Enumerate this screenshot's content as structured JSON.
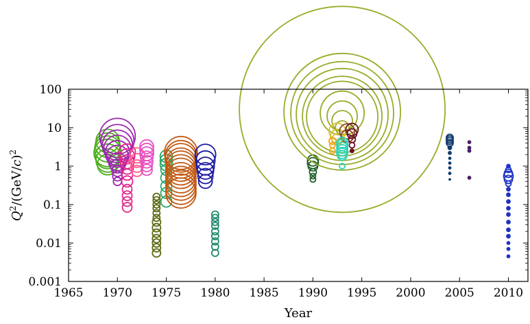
{
  "chart_data": {
    "type": "scatter",
    "xlabel": "Year",
    "ylabel_parts": [
      "Q",
      "2",
      "/(GeV/",
      "c",
      ")",
      "2"
    ],
    "xlim": [
      1965,
      2012
    ],
    "ylim": [
      0.001,
      100
    ],
    "yscale": "log",
    "x_ticks": [
      1965,
      1970,
      1975,
      1980,
      1985,
      1990,
      1995,
      2000,
      2005,
      2010
    ],
    "y_ticks": [
      0.001,
      0.01,
      0.1,
      1,
      10,
      100
    ],
    "y_tick_labels": [
      "0.001",
      "0.01",
      "0.1",
      "1",
      "10",
      "100"
    ],
    "grid": false,
    "marker": "open-circle",
    "series": [
      {
        "color": "#4caf1c",
        "points": [
          {
            "x": 1969,
            "y": 4.5,
            "size": 17
          },
          {
            "x": 1969,
            "y": 3.5,
            "size": 18
          },
          {
            "x": 1969,
            "y": 2.8,
            "size": 19
          },
          {
            "x": 1969,
            "y": 2.2,
            "size": 20
          },
          {
            "x": 1969,
            "y": 1.8,
            "size": 18
          },
          {
            "x": 1969,
            "y": 1.4,
            "size": 17
          },
          {
            "x": 1969,
            "y": 1.1,
            "size": 15
          }
        ]
      },
      {
        "color": "#9c27b0",
        "points": [
          {
            "x": 1970,
            "y": 6,
            "size": 26
          },
          {
            "x": 1970,
            "y": 4.5,
            "size": 24
          },
          {
            "x": 1970,
            "y": 3.5,
            "size": 22
          },
          {
            "x": 1970,
            "y": 2.8,
            "size": 20
          },
          {
            "x": 1970,
            "y": 2.2,
            "size": 18
          },
          {
            "x": 1970,
            "y": 1.8,
            "size": 16
          },
          {
            "x": 1970,
            "y": 1.3,
            "size": 13
          },
          {
            "x": 1970,
            "y": 1,
            "size": 10
          },
          {
            "x": 1970,
            "y": 0.75,
            "size": 8
          },
          {
            "x": 1970,
            "y": 0.55,
            "size": 7
          },
          {
            "x": 1970,
            "y": 0.4,
            "size": 6
          }
        ]
      },
      {
        "color": "#e3268a",
        "points": [
          {
            "x": 1971,
            "y": 2.3,
            "size": 12
          },
          {
            "x": 1971,
            "y": 1.8,
            "size": 11
          },
          {
            "x": 1971,
            "y": 1.3,
            "size": 10
          },
          {
            "x": 1971,
            "y": 0.9,
            "size": 9
          },
          {
            "x": 1971,
            "y": 0.6,
            "size": 8
          },
          {
            "x": 1971,
            "y": 0.4,
            "size": 8
          },
          {
            "x": 1971,
            "y": 0.25,
            "size": 7
          },
          {
            "x": 1971,
            "y": 0.17,
            "size": 7
          },
          {
            "x": 1971,
            "y": 0.12,
            "size": 7
          },
          {
            "x": 1971,
            "y": 0.085,
            "size": 7
          }
        ]
      },
      {
        "color": "#ff5a8a",
        "points": [
          {
            "x": 1972,
            "y": 1.9,
            "size": 11
          },
          {
            "x": 1972,
            "y": 1.4,
            "size": 10
          },
          {
            "x": 1972,
            "y": 1,
            "size": 9
          },
          {
            "x": 1972,
            "y": 0.75,
            "size": 8
          }
        ]
      },
      {
        "color": "#e64fc4",
        "points": [
          {
            "x": 1973,
            "y": 3.2,
            "size": 10
          },
          {
            "x": 1973,
            "y": 2.6,
            "size": 10
          },
          {
            "x": 1973,
            "y": 2.1,
            "size": 10
          },
          {
            "x": 1973,
            "y": 1.7,
            "size": 9
          },
          {
            "x": 1973,
            "y": 1.3,
            "size": 9
          },
          {
            "x": 1973,
            "y": 1,
            "size": 8
          },
          {
            "x": 1973,
            "y": 0.8,
            "size": 8
          }
        ]
      },
      {
        "color": "#5b6b12",
        "points": [
          {
            "x": 1974,
            "y": 0.16,
            "size": 5
          },
          {
            "x": 1974,
            "y": 0.13,
            "size": 5
          },
          {
            "x": 1974,
            "y": 0.1,
            "size": 5
          },
          {
            "x": 1974,
            "y": 0.08,
            "size": 5
          },
          {
            "x": 1974,
            "y": 0.06,
            "size": 5
          },
          {
            "x": 1974,
            "y": 0.045,
            "size": 5
          },
          {
            "x": 1974,
            "y": 0.035,
            "size": 6
          },
          {
            "x": 1974,
            "y": 0.025,
            "size": 6
          },
          {
            "x": 1974,
            "y": 0.018,
            "size": 6
          },
          {
            "x": 1974,
            "y": 0.013,
            "size": 6
          },
          {
            "x": 1974,
            "y": 0.01,
            "size": 6
          },
          {
            "x": 1974,
            "y": 0.0075,
            "size": 6
          },
          {
            "x": 1974,
            "y": 0.0055,
            "size": 6
          }
        ]
      },
      {
        "color": "#2aa86a",
        "points": [
          {
            "x": 1975,
            "y": 1.8,
            "size": 9
          },
          {
            "x": 1975,
            "y": 1.4,
            "size": 9
          },
          {
            "x": 1975,
            "y": 1.1,
            "size": 9
          },
          {
            "x": 1975,
            "y": 0.8,
            "size": 8
          },
          {
            "x": 1975,
            "y": 0.5,
            "size": 8
          },
          {
            "x": 1975,
            "y": 0.3,
            "size": 8
          },
          {
            "x": 1975,
            "y": 0.2,
            "size": 8
          },
          {
            "x": 1975,
            "y": 0.12,
            "size": 8
          }
        ]
      },
      {
        "color": "#c25a14",
        "points": [
          {
            "x": 1976.5,
            "y": 2.2,
            "size": 24
          },
          {
            "x": 1976.5,
            "y": 1.8,
            "size": 23
          },
          {
            "x": 1976.5,
            "y": 1.5,
            "size": 23
          },
          {
            "x": 1976.5,
            "y": 1.2,
            "size": 22
          },
          {
            "x": 1976.5,
            "y": 1,
            "size": 22
          },
          {
            "x": 1976.5,
            "y": 0.8,
            "size": 22
          },
          {
            "x": 1976.5,
            "y": 0.65,
            "size": 22
          },
          {
            "x": 1976.5,
            "y": 0.5,
            "size": 22
          },
          {
            "x": 1976.5,
            "y": 0.4,
            "size": 22
          },
          {
            "x": 1976.5,
            "y": 0.32,
            "size": 22
          },
          {
            "x": 1976.5,
            "y": 0.25,
            "size": 22
          },
          {
            "x": 1976.5,
            "y": 0.2,
            "size": 22
          }
        ]
      },
      {
        "color": "#1a1aa3",
        "points": [
          {
            "x": 1979,
            "y": 2,
            "size": 15
          },
          {
            "x": 1979,
            "y": 1.4,
            "size": 14
          },
          {
            "x": 1979,
            "y": 1,
            "size": 13
          },
          {
            "x": 1979,
            "y": 0.75,
            "size": 12
          },
          {
            "x": 1979,
            "y": 0.55,
            "size": 11
          },
          {
            "x": 1979,
            "y": 0.4,
            "size": 10
          }
        ]
      },
      {
        "color": "#1e8a6b",
        "points": [
          {
            "x": 1980,
            "y": 0.055,
            "size": 5
          },
          {
            "x": 1980,
            "y": 0.045,
            "size": 5
          },
          {
            "x": 1980,
            "y": 0.035,
            "size": 5
          },
          {
            "x": 1980,
            "y": 0.028,
            "size": 5
          },
          {
            "x": 1980,
            "y": 0.02,
            "size": 5
          },
          {
            "x": 1980,
            "y": 0.015,
            "size": 5
          },
          {
            "x": 1980,
            "y": 0.011,
            "size": 5
          },
          {
            "x": 1980,
            "y": 0.008,
            "size": 5
          },
          {
            "x": 1980,
            "y": 0.0055,
            "size": 5
          }
        ]
      },
      {
        "color": "#1f5f2a",
        "points": [
          {
            "x": 1990,
            "y": 1.4,
            "size": 8
          },
          {
            "x": 1990,
            "y": 1.2,
            "size": 8
          },
          {
            "x": 1990,
            "y": 1,
            "size": 7
          },
          {
            "x": 1990,
            "y": 0.7,
            "size": 5
          },
          {
            "x": 1990,
            "y": 0.55,
            "size": 4
          },
          {
            "x": 1990,
            "y": 0.45,
            "size": 4
          }
        ]
      },
      {
        "color": "#9aab28",
        "points": [
          {
            "x": 1993,
            "y": 30,
            "size": 150
          },
          {
            "x": 1993,
            "y": 26,
            "size": 85
          },
          {
            "x": 1993,
            "y": 24,
            "size": 75
          },
          {
            "x": 1993,
            "y": 22,
            "size": 67
          },
          {
            "x": 1993,
            "y": 20,
            "size": 58
          },
          {
            "x": 1993,
            "y": 19,
            "size": 52
          },
          {
            "x": 1993,
            "y": 24,
            "size": 32
          },
          {
            "x": 1993,
            "y": 20,
            "size": 22
          },
          {
            "x": 1993,
            "y": 15,
            "size": 15
          },
          {
            "x": 1993,
            "y": 10,
            "size": 10
          }
        ]
      },
      {
        "color": "#d9c12a",
        "points": [
          {
            "x": 1992.5,
            "y": 8,
            "size": 12
          },
          {
            "x": 1992.5,
            "y": 6,
            "size": 10
          },
          {
            "x": 1992.5,
            "y": 5,
            "size": 8
          }
        ]
      },
      {
        "color": "#f5a01a",
        "points": [
          {
            "x": 1992,
            "y": 4.5,
            "size": 5
          },
          {
            "x": 1992,
            "y": 3.5,
            "size": 4
          },
          {
            "x": 1992,
            "y": 2.5,
            "size": 4
          }
        ]
      },
      {
        "color": "#8b4a2a",
        "points": [
          {
            "x": 1993.5,
            "y": 8,
            "size": 11
          },
          {
            "x": 1993.5,
            "y": 6,
            "size": 9
          }
        ]
      },
      {
        "color": "#6b0f1f",
        "points": [
          {
            "x": 1994,
            "y": 9,
            "size": 9
          },
          {
            "x": 1994,
            "y": 7,
            "size": 7
          },
          {
            "x": 1994,
            "y": 5,
            "size": 5
          },
          {
            "x": 1994,
            "y": 3.5,
            "size": 4
          },
          {
            "x": 1994,
            "y": 2.5,
            "size": 3
          }
        ]
      },
      {
        "color": "#2ad4b8",
        "points": [
          {
            "x": 1993,
            "y": 4,
            "size": 8
          },
          {
            "x": 1993,
            "y": 3.5,
            "size": 8
          },
          {
            "x": 1993,
            "y": 3,
            "size": 8
          },
          {
            "x": 1993,
            "y": 2.6,
            "size": 8
          },
          {
            "x": 1993,
            "y": 2.2,
            "size": 8
          },
          {
            "x": 1993,
            "y": 1.9,
            "size": 7
          },
          {
            "x": 1993,
            "y": 1,
            "size": 4
          }
        ]
      },
      {
        "color": "#0f3a6b",
        "points": [
          {
            "x": 2004,
            "y": 5.5,
            "size": 5
          },
          {
            "x": 2004,
            "y": 5,
            "size": 5
          },
          {
            "x": 2004,
            "y": 4.5,
            "size": 5
          },
          {
            "x": 2004,
            "y": 4,
            "size": 5
          },
          {
            "x": 2004,
            "y": 3,
            "size": 3
          },
          {
            "x": 2004,
            "y": 2.2,
            "size": 2.5
          },
          {
            "x": 2004,
            "y": 1.6,
            "size": 2
          },
          {
            "x": 2004,
            "y": 1.2,
            "size": 2
          },
          {
            "x": 2004,
            "y": 0.9,
            "size": 2
          },
          {
            "x": 2004,
            "y": 0.65,
            "size": 2
          },
          {
            "x": 2004,
            "y": 0.45,
            "size": 1.5
          }
        ]
      },
      {
        "color": "#4a1f6b",
        "points": [
          {
            "x": 2006,
            "y": 4.2,
            "size": 2.5
          },
          {
            "x": 2006,
            "y": 3,
            "size": 2.5
          },
          {
            "x": 2006,
            "y": 2.5,
            "size": 2.5
          },
          {
            "x": 2006,
            "y": 0.5,
            "size": 2.5
          }
        ]
      },
      {
        "color": "#1f33c4",
        "points": [
          {
            "x": 2010,
            "y": 1,
            "size": 3
          },
          {
            "x": 2010,
            "y": 0.8,
            "size": 4
          },
          {
            "x": 2010,
            "y": 0.65,
            "size": 6
          },
          {
            "x": 2010,
            "y": 0.55,
            "size": 7
          },
          {
            "x": 2010,
            "y": 0.45,
            "size": 6
          },
          {
            "x": 2010,
            "y": 0.35,
            "size": 4
          },
          {
            "x": 2010,
            "y": 0.25,
            "size": 3
          },
          {
            "x": 2010,
            "y": 0.18,
            "size": 3
          },
          {
            "x": 2010,
            "y": 0.12,
            "size": 3
          },
          {
            "x": 2010,
            "y": 0.08,
            "size": 3
          },
          {
            "x": 2010,
            "y": 0.055,
            "size": 3
          },
          {
            "x": 2010,
            "y": 0.035,
            "size": 3
          },
          {
            "x": 2010,
            "y": 0.022,
            "size": 3
          },
          {
            "x": 2010,
            "y": 0.015,
            "size": 3
          },
          {
            "x": 2010,
            "y": 0.01,
            "size": 2.5
          },
          {
            "x": 2010,
            "y": 0.007,
            "size": 2.5
          },
          {
            "x": 2010,
            "y": 0.0045,
            "size": 2.5
          }
        ]
      }
    ]
  }
}
